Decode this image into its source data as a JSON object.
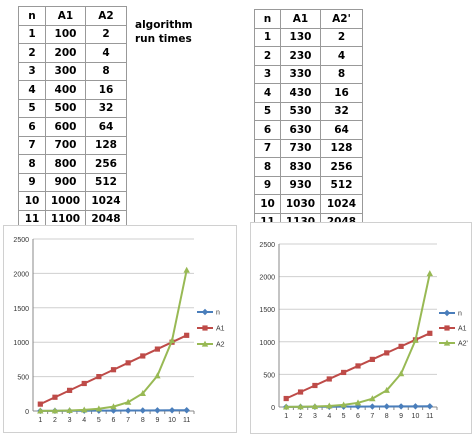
{
  "caption": {
    "line1": "algorithm",
    "line2": "run times"
  },
  "table1": {
    "headers": [
      "n",
      "A1",
      "A2"
    ],
    "rows": [
      [
        "1",
        "100",
        "2"
      ],
      [
        "2",
        "200",
        "4"
      ],
      [
        "3",
        "300",
        "8"
      ],
      [
        "4",
        "400",
        "16"
      ],
      [
        "5",
        "500",
        "32"
      ],
      [
        "6",
        "600",
        "64"
      ],
      [
        "7",
        "700",
        "128"
      ],
      [
        "8",
        "800",
        "256"
      ],
      [
        "9",
        "900",
        "512"
      ],
      [
        "10",
        "1000",
        "1024"
      ],
      [
        "11",
        "1100",
        "2048"
      ]
    ]
  },
  "table2": {
    "headers": [
      "n",
      "A1",
      "A2'"
    ],
    "rows": [
      [
        "1",
        "130",
        "2"
      ],
      [
        "2",
        "230",
        "4"
      ],
      [
        "3",
        "330",
        "8"
      ],
      [
        "4",
        "430",
        "16"
      ],
      [
        "5",
        "530",
        "32"
      ],
      [
        "6",
        "630",
        "64"
      ],
      [
        "7",
        "730",
        "128"
      ],
      [
        "8",
        "830",
        "256"
      ],
      [
        "9",
        "930",
        "512"
      ],
      [
        "10",
        "1030",
        "1024"
      ],
      [
        "11",
        "1130",
        "2048"
      ]
    ]
  },
  "chart_data": [
    {
      "type": "line",
      "categories": [
        "1",
        "2",
        "3",
        "4",
        "5",
        "6",
        "7",
        "8",
        "9",
        "10",
        "11"
      ],
      "ylim": [
        0,
        2500
      ],
      "yticks": [
        "0",
        "500",
        "1000",
        "1500",
        "2000",
        "2500"
      ],
      "grid": true,
      "legend": "right",
      "series": [
        {
          "name": "n",
          "values": [
            1,
            2,
            3,
            4,
            5,
            6,
            7,
            8,
            9,
            10,
            11
          ],
          "color": "#4a7ebb",
          "marker": "diamond"
        },
        {
          "name": "A1",
          "values": [
            100,
            200,
            300,
            400,
            500,
            600,
            700,
            800,
            900,
            1000,
            1100
          ],
          "color": "#be4b48",
          "marker": "square"
        },
        {
          "name": "A2",
          "values": [
            2,
            4,
            8,
            16,
            32,
            64,
            128,
            256,
            512,
            1024,
            2048
          ],
          "color": "#98b954",
          "marker": "triangle"
        }
      ]
    },
    {
      "type": "line",
      "categories": [
        "1",
        "2",
        "3",
        "4",
        "5",
        "6",
        "7",
        "8",
        "9",
        "10",
        "11"
      ],
      "ylim": [
        0,
        2500
      ],
      "yticks": [
        "0",
        "500",
        "1000",
        "1500",
        "2000",
        "2500"
      ],
      "grid": true,
      "legend": "right",
      "series": [
        {
          "name": "n",
          "values": [
            1,
            2,
            3,
            4,
            5,
            6,
            7,
            8,
            9,
            10,
            11
          ],
          "color": "#4a7ebb",
          "marker": "diamond"
        },
        {
          "name": "A1",
          "values": [
            130,
            230,
            330,
            430,
            530,
            630,
            730,
            830,
            930,
            1030,
            1130
          ],
          "color": "#be4b48",
          "marker": "square"
        },
        {
          "name": "A2'",
          "values": [
            2,
            4,
            8,
            16,
            32,
            64,
            128,
            256,
            512,
            1024,
            2048
          ],
          "color": "#98b954",
          "marker": "triangle"
        }
      ]
    }
  ]
}
